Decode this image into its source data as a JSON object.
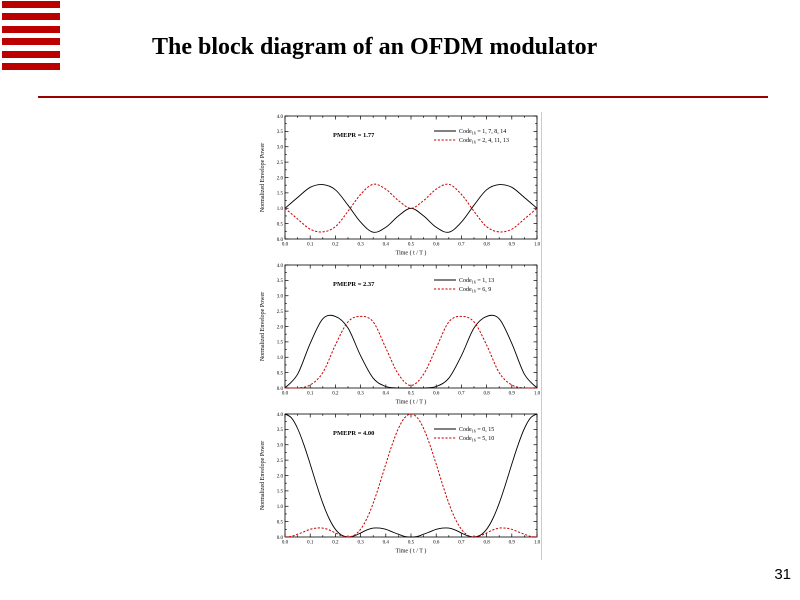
{
  "slide": {
    "title": "The block diagram of an OFDM modulator",
    "page_number": "31"
  },
  "logo": {
    "stripe_count": 6,
    "color": "#bb0000"
  },
  "divider": {
    "color": "#990000"
  },
  "chart_data": [
    {
      "type": "line",
      "title": "",
      "xlabel": "Time ( t / T )",
      "ylabel": "Normalized Envelope Power",
      "xlim": [
        0,
        1
      ],
      "ylim": [
        0,
        4
      ],
      "xtick_major": 0.1,
      "xtick_minor": 0.05,
      "ytick_major": 0.5,
      "ytick_minor": 0.25,
      "xtick_labels": [
        "0.0",
        "0.1",
        "0.2",
        "0.3",
        "0.4",
        "0.5",
        "0.6",
        "0.7",
        "0.8",
        "0.9",
        "1.0"
      ],
      "ytick_labels": [
        "0.0",
        "0.5",
        "1.0",
        "1.5",
        "2.0",
        "2.5",
        "3.0",
        "3.5",
        "4.0"
      ],
      "grid": false,
      "legend_position": "upper right",
      "annotation": "PMEPR = 1.77",
      "series": [
        {
          "legend": {
            "prefix": "Code",
            "sub": "16",
            "rest": " = 1, 7, 8, 14"
          },
          "color": "#000000",
          "style": "solid",
          "x_step": 0.05,
          "y": [
            1.0,
            1.35,
            1.68,
            1.77,
            1.6,
            1.1,
            0.55,
            0.22,
            0.38,
            0.75,
            1.0,
            0.75,
            0.38,
            0.22,
            0.55,
            1.1,
            1.6,
            1.77,
            1.68,
            1.35,
            1.0
          ]
        },
        {
          "legend": {
            "prefix": "Code",
            "sub": "16",
            "rest": " = 2, 4, 11, 13"
          },
          "color": "#cc0000",
          "style": "dashed",
          "x_step": 0.05,
          "y": [
            1.0,
            0.65,
            0.32,
            0.23,
            0.4,
            0.9,
            1.45,
            1.78,
            1.62,
            1.25,
            1.0,
            1.25,
            1.62,
            1.78,
            1.45,
            0.9,
            0.4,
            0.23,
            0.32,
            0.65,
            1.0
          ]
        }
      ]
    },
    {
      "type": "line",
      "title": "",
      "xlabel": "Time ( t / T )",
      "ylabel": "Normalized Envelope Power",
      "xlim": [
        0,
        1
      ],
      "ylim": [
        0,
        4
      ],
      "xtick_major": 0.1,
      "xtick_minor": 0.05,
      "ytick_major": 0.5,
      "ytick_minor": 0.25,
      "xtick_labels": [
        "0.0",
        "0.1",
        "0.2",
        "0.3",
        "0.4",
        "0.5",
        "0.6",
        "0.7",
        "0.8",
        "0.9",
        "1.0"
      ],
      "ytick_labels": [
        "0.0",
        "0.5",
        "1.0",
        "1.5",
        "2.0",
        "2.5",
        "3.0",
        "3.5",
        "4.0"
      ],
      "grid": false,
      "legend_position": "upper right",
      "annotation": "PMEPR = 2.37",
      "series": [
        {
          "legend": {
            "prefix": "Code",
            "sub": "16",
            "rest": " = 1, 13"
          },
          "color": "#000000",
          "style": "solid",
          "x_step": 0.05,
          "y": [
            0.0,
            0.45,
            1.45,
            2.25,
            2.33,
            1.95,
            1.05,
            0.32,
            0.05,
            0.0,
            0.0,
            0.0,
            0.05,
            0.32,
            1.05,
            1.95,
            2.33,
            2.25,
            1.45,
            0.45,
            0.0
          ]
        },
        {
          "legend": {
            "prefix": "Code",
            "sub": "16",
            "rest": " = 6, 9"
          },
          "color": "#cc0000",
          "style": "dashed",
          "x_step": 0.05,
          "y": [
            0.0,
            0.0,
            0.1,
            0.5,
            1.4,
            2.15,
            2.33,
            2.15,
            1.3,
            0.45,
            0.08,
            0.45,
            1.3,
            2.15,
            2.33,
            2.15,
            1.4,
            0.5,
            0.1,
            0.0,
            0.0
          ]
        }
      ]
    },
    {
      "type": "line",
      "title": "",
      "xlabel": "Time ( t / T )",
      "ylabel": "Normalized Envelope Power",
      "xlim": [
        0,
        1
      ],
      "ylim": [
        0,
        4
      ],
      "xtick_major": 0.1,
      "xtick_minor": 0.05,
      "ytick_major": 0.5,
      "ytick_minor": 0.25,
      "xtick_labels": [
        "0.0",
        "0.1",
        "0.2",
        "0.3",
        "0.4",
        "0.5",
        "0.6",
        "0.7",
        "0.8",
        "0.9",
        "1.0"
      ],
      "ytick_labels": [
        "0.0",
        "0.5",
        "1.0",
        "1.5",
        "2.0",
        "2.5",
        "3.0",
        "3.5",
        "4.0"
      ],
      "grid": false,
      "legend_position": "upper right",
      "annotation": "PMEPR = 4.00",
      "series": [
        {
          "legend": {
            "prefix": "Code",
            "sub": "16",
            "rest": " = 0, 15"
          },
          "color": "#000000",
          "style": "solid",
          "x_step": 0.025,
          "y": [
            4.0,
            3.88,
            3.53,
            3.0,
            2.37,
            1.71,
            1.1,
            0.6,
            0.25,
            0.06,
            0.0,
            0.04,
            0.13,
            0.23,
            0.29,
            0.29,
            0.25,
            0.17,
            0.09,
            0.02,
            0.0,
            0.02,
            0.09,
            0.17,
            0.25,
            0.29,
            0.29,
            0.23,
            0.13,
            0.04,
            0.0,
            0.06,
            0.25,
            0.6,
            1.1,
            1.71,
            2.37,
            3.0,
            3.53,
            3.88,
            4.0
          ]
        },
        {
          "legend": {
            "prefix": "Code",
            "sub": "16",
            "rest": " = 5, 10"
          },
          "color": "#cc0000",
          "style": "dashed",
          "x_step": 0.025,
          "y": [
            0.0,
            0.02,
            0.09,
            0.17,
            0.25,
            0.29,
            0.29,
            0.23,
            0.13,
            0.04,
            0.0,
            0.06,
            0.25,
            0.6,
            1.1,
            1.71,
            2.37,
            3.0,
            3.53,
            3.88,
            4.0,
            3.88,
            3.53,
            3.0,
            2.37,
            1.71,
            1.1,
            0.6,
            0.25,
            0.06,
            0.0,
            0.04,
            0.13,
            0.23,
            0.29,
            0.29,
            0.25,
            0.17,
            0.09,
            0.02,
            0.0
          ]
        }
      ]
    }
  ]
}
